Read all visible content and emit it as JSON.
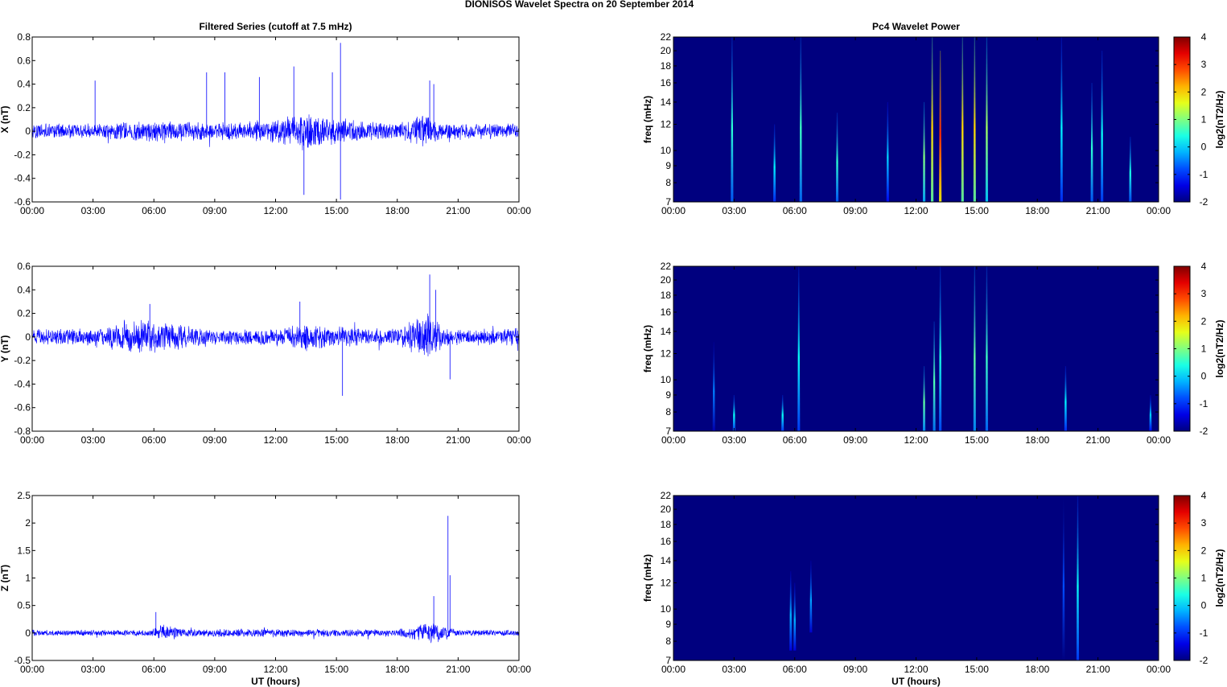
{
  "figure_title": "DIONISOS Wavelet Spectra on 20 September 2014",
  "colors": {
    "series": "#0000ff",
    "background": "#ffffff",
    "spectrogram_floor": "#00007f"
  },
  "colormap": "jet",
  "chart_data": [
    {
      "type": "line",
      "title": "Filtered Series (cutoff at 7.5 mHz)",
      "xlabel": "",
      "ylabel": "X (nT)",
      "xlim": [
        "00:00",
        "24:00"
      ],
      "ylim": [
        -0.6,
        0.8
      ],
      "x_ticks": [
        "00:00",
        "03:00",
        "06:00",
        "09:00",
        "12:00",
        "15:00",
        "18:00",
        "21:00",
        "00:00"
      ],
      "y_ticks": [
        "-0.6",
        "-0.4",
        "-0.2",
        "0",
        "0.2",
        "0.4",
        "0.6",
        "0.8"
      ],
      "envelope": {
        "hours": [
          0,
          3,
          6,
          9,
          12,
          13.5,
          15,
          18,
          19.3,
          20,
          21,
          24
        ],
        "amplitude": [
          0.07,
          0.07,
          0.1,
          0.08,
          0.1,
          0.18,
          0.12,
          0.07,
          0.15,
          0.09,
          0.07,
          0.07
        ]
      },
      "peaks": [
        {
          "hour": 3.1,
          "value": 0.43
        },
        {
          "hour": 8.6,
          "value": 0.5
        },
        {
          "hour": 9.5,
          "value": 0.5
        },
        {
          "hour": 11.2,
          "value": 0.46
        },
        {
          "hour": 12.9,
          "value": 0.55
        },
        {
          "hour": 13.4,
          "value": -0.54
        },
        {
          "hour": 14.8,
          "value": 0.5
        },
        {
          "hour": 15.2,
          "value": 0.75
        },
        {
          "hour": 15.2,
          "value": -0.58
        },
        {
          "hour": 19.6,
          "value": 0.43
        },
        {
          "hour": 19.8,
          "value": 0.4
        }
      ]
    },
    {
      "type": "line",
      "title": "",
      "xlabel": "",
      "ylabel": "Y (nT)",
      "xlim": [
        "00:00",
        "24:00"
      ],
      "ylim": [
        -0.8,
        0.6
      ],
      "x_ticks": [
        "00:00",
        "03:00",
        "06:00",
        "09:00",
        "12:00",
        "15:00",
        "18:00",
        "21:00",
        "00:00"
      ],
      "y_ticks": [
        "-0.8",
        "-0.6",
        "-0.4",
        "-0.2",
        "0",
        "0.2",
        "0.4",
        "0.6"
      ],
      "envelope": {
        "hours": [
          0,
          3,
          5.5,
          7,
          9,
          12,
          13.5,
          15,
          18,
          19.5,
          20.3,
          21,
          24
        ],
        "amplitude": [
          0.07,
          0.08,
          0.17,
          0.12,
          0.07,
          0.08,
          0.13,
          0.09,
          0.08,
          0.22,
          0.09,
          0.07,
          0.08
        ]
      },
      "peaks": [
        {
          "hour": 5.8,
          "value": 0.28
        },
        {
          "hour": 13.2,
          "value": 0.3
        },
        {
          "hour": 15.3,
          "value": -0.5
        },
        {
          "hour": 19.6,
          "value": 0.53
        },
        {
          "hour": 19.9,
          "value": 0.4
        },
        {
          "hour": 20.6,
          "value": -0.36
        }
      ]
    },
    {
      "type": "line",
      "title": "",
      "xlabel": "UT (hours)",
      "ylabel": "Z (nT)",
      "xlim": [
        "00:00",
        "24:00"
      ],
      "ylim": [
        -0.5,
        2.5
      ],
      "x_ticks": [
        "00:00",
        "03:00",
        "06:00",
        "09:00",
        "12:00",
        "15:00",
        "18:00",
        "21:00",
        "00:00"
      ],
      "y_ticks": [
        "-0.5",
        "0",
        "0.5",
        "1",
        "1.5",
        "2",
        "2.5"
      ],
      "envelope": {
        "hours": [
          0,
          5.5,
          6.5,
          7.5,
          12,
          18,
          19.5,
          20.5,
          21,
          24
        ],
        "amplitude": [
          0.06,
          0.06,
          0.17,
          0.08,
          0.08,
          0.07,
          0.22,
          0.12,
          0.06,
          0.06
        ]
      },
      "peaks": [
        {
          "hour": 6.1,
          "value": 0.38
        },
        {
          "hour": 19.8,
          "value": 0.67
        },
        {
          "hour": 20.5,
          "value": 2.13
        },
        {
          "hour": 20.6,
          "value": 1.05
        }
      ]
    },
    {
      "type": "heatmap",
      "title": "Pc4 Wavelet Power",
      "xlabel": "",
      "ylabel": "freq (mHz)",
      "xlim": [
        "00:00",
        "24:00"
      ],
      "ylim": [
        7,
        22
      ],
      "y_scale": "log",
      "x_ticks": [
        "00:00",
        "03:00",
        "06:00",
        "09:00",
        "12:00",
        "15:00",
        "18:00",
        "21:00",
        "00:00"
      ],
      "y_ticks": [
        "7",
        "8",
        "9",
        "10",
        "12",
        "14",
        "16",
        "18",
        "20",
        "22"
      ],
      "colorbar": {
        "label": "log2(nT2/Hz)",
        "ticks": [
          "-2",
          "-1",
          "0",
          "1",
          "2",
          "3",
          "4"
        ],
        "range": [
          -2,
          4
        ]
      },
      "bursts": [
        {
          "hour": 2.9,
          "f_min": 7,
          "f_max": 22,
          "power": 0.5
        },
        {
          "hour": 5.0,
          "f_min": 7,
          "f_max": 12,
          "power": 0.2
        },
        {
          "hour": 6.3,
          "f_min": 7,
          "f_max": 22,
          "power": 0.6
        },
        {
          "hour": 8.1,
          "f_min": 7,
          "f_max": 13,
          "power": 0.5
        },
        {
          "hour": 10.6,
          "f_min": 7,
          "f_max": 14,
          "power": 0.0
        },
        {
          "hour": 12.4,
          "f_min": 7,
          "f_max": 14,
          "power": 1.0
        },
        {
          "hour": 12.8,
          "f_min": 7,
          "f_max": 22,
          "power": 2.0
        },
        {
          "hour": 13.2,
          "f_min": 7,
          "f_max": 20,
          "power": 3.0
        },
        {
          "hour": 14.3,
          "f_min": 7,
          "f_max": 22,
          "power": 2.0
        },
        {
          "hour": 14.9,
          "f_min": 7,
          "f_max": 22,
          "power": 2.0
        },
        {
          "hour": 15.5,
          "f_min": 7,
          "f_max": 22,
          "power": 1.2
        },
        {
          "hour": 19.2,
          "f_min": 7,
          "f_max": 22,
          "power": 0.2
        },
        {
          "hour": 20.7,
          "f_min": 7,
          "f_max": 16,
          "power": 0.5
        },
        {
          "hour": 21.2,
          "f_min": 7,
          "f_max": 20,
          "power": 0.3
        },
        {
          "hour": 22.6,
          "f_min": 7,
          "f_max": 11,
          "power": 0.4
        }
      ]
    },
    {
      "type": "heatmap",
      "title": "",
      "xlabel": "",
      "ylabel": "freq (mHz)",
      "xlim": [
        "00:00",
        "24:00"
      ],
      "ylim": [
        7,
        22
      ],
      "y_scale": "log",
      "x_ticks": [
        "00:00",
        "03:00",
        "06:00",
        "09:00",
        "12:00",
        "15:00",
        "18:00",
        "21:00",
        "00:00"
      ],
      "y_ticks": [
        "7",
        "8",
        "9",
        "10",
        "12",
        "14",
        "16",
        "18",
        "20",
        "22"
      ],
      "colorbar": {
        "label": "log2(nT2/Hz)",
        "ticks": [
          "-2",
          "-1",
          "0",
          "1",
          "2",
          "3",
          "4"
        ],
        "range": [
          -2,
          4
        ]
      },
      "bursts": [
        {
          "hour": 2.0,
          "f_min": 7,
          "f_max": 13,
          "power": -0.5
        },
        {
          "hour": 3.0,
          "f_min": 7,
          "f_max": 9,
          "power": 0.3
        },
        {
          "hour": 5.4,
          "f_min": 7,
          "f_max": 9,
          "power": 0.3
        },
        {
          "hour": 6.2,
          "f_min": 7,
          "f_max": 22,
          "power": 0.3
        },
        {
          "hour": 12.4,
          "f_min": 7,
          "f_max": 11,
          "power": 0.8
        },
        {
          "hour": 12.9,
          "f_min": 7,
          "f_max": 15,
          "power": 0.7
        },
        {
          "hour": 13.2,
          "f_min": 7,
          "f_max": 22,
          "power": 0.4
        },
        {
          "hour": 14.9,
          "f_min": 7,
          "f_max": 22,
          "power": 0.8
        },
        {
          "hour": 15.5,
          "f_min": 7,
          "f_max": 22,
          "power": 0.6
        },
        {
          "hour": 19.4,
          "f_min": 7,
          "f_max": 11,
          "power": 0.2
        },
        {
          "hour": 23.6,
          "f_min": 7,
          "f_max": 9,
          "power": 0.0
        }
      ]
    },
    {
      "type": "heatmap",
      "title": "",
      "xlabel": "UT (hours)",
      "ylabel": "freq (mHz)",
      "xlim": [
        "00:00",
        "24:00"
      ],
      "ylim": [
        7,
        22
      ],
      "y_scale": "log",
      "x_ticks": [
        "00:00",
        "03:00",
        "06:00",
        "09:00",
        "12:00",
        "15:00",
        "18:00",
        "21:00",
        "00:00"
      ],
      "y_ticks": [
        "7",
        "8",
        "9",
        "10",
        "12",
        "14",
        "16",
        "18",
        "20",
        "22"
      ],
      "colorbar": {
        "label": "log2(nT2/Hz)",
        "ticks": [
          "-2",
          "-1",
          "0",
          "1",
          "2",
          "3",
          "4"
        ],
        "range": [
          -2,
          4
        ]
      },
      "bursts": [
        {
          "hour": 5.8,
          "f_min": 7.5,
          "f_max": 13,
          "power": -0.2
        },
        {
          "hour": 6.0,
          "f_min": 7.5,
          "f_max": 12,
          "power": -0.2
        },
        {
          "hour": 6.8,
          "f_min": 8.5,
          "f_max": 14,
          "power": -0.3
        },
        {
          "hour": 19.3,
          "f_min": 7,
          "f_max": 22,
          "power": -0.8
        },
        {
          "hour": 20.0,
          "f_min": 7,
          "f_max": 22,
          "power": 0.3
        }
      ]
    }
  ]
}
